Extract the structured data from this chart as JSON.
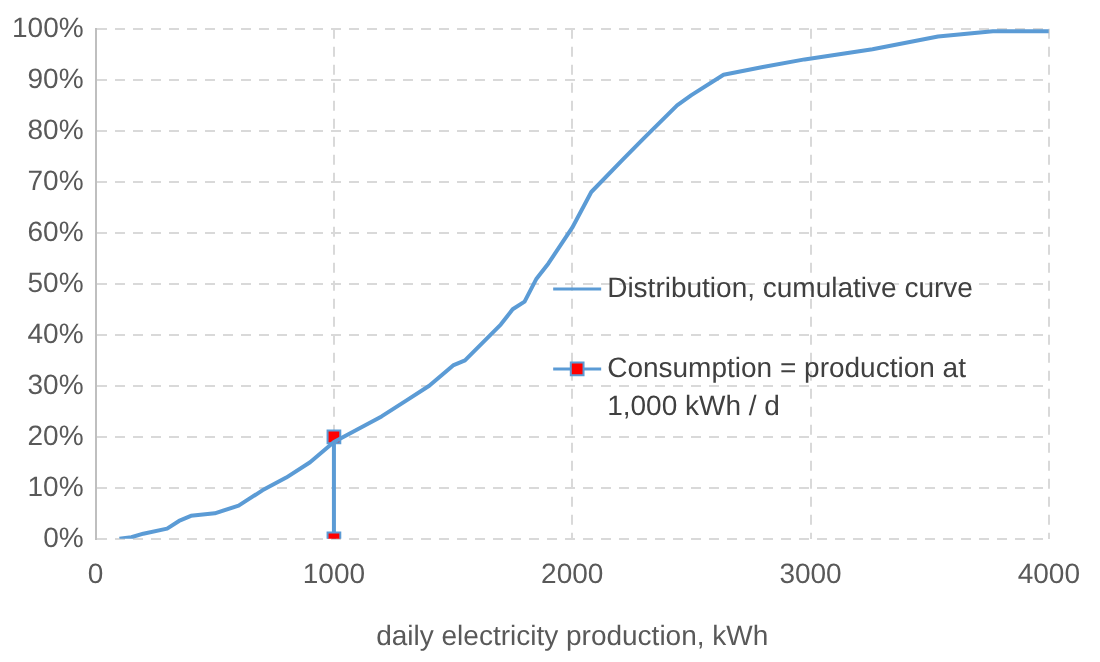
{
  "chart_data": {
    "type": "line",
    "xlabel": "daily electricity production, kWh",
    "xlim": [
      0,
      4000
    ],
    "xticks": [
      0,
      1000,
      2000,
      3000,
      4000
    ],
    "ylim": [
      0,
      100
    ],
    "yticks": [
      {
        "value": 0,
        "label": "0%"
      },
      {
        "value": 10,
        "label": "10%"
      },
      {
        "value": 20,
        "label": "20%"
      },
      {
        "value": 30,
        "label": "30%"
      },
      {
        "value": 40,
        "label": "40%"
      },
      {
        "value": 50,
        "label": "50%"
      },
      {
        "value": 60,
        "label": "60%"
      },
      {
        "value": 70,
        "label": "70%"
      },
      {
        "value": 80,
        "label": "80%"
      },
      {
        "value": 90,
        "label": "90%"
      },
      {
        "value": 100,
        "label": "100%"
      }
    ],
    "grid": true,
    "legend": "right",
    "line_style": "solid",
    "series": [
      {
        "name": "Distribution, cumulative curve",
        "color": "#5b9bd5",
        "marker": "none",
        "x": [
          100,
          150,
          200,
          300,
          350,
          400,
          500,
          600,
          700,
          800,
          900,
          1000,
          1100,
          1200,
          1300,
          1400,
          1500,
          1550,
          1700,
          1750,
          1800,
          1850,
          1900,
          2000,
          2080,
          2215,
          2300,
          2440,
          2500,
          2635,
          2800,
          2975,
          3260,
          3535,
          3765,
          4000
        ],
        "values": [
          0,
          0.3,
          1,
          2,
          3.5,
          4.5,
          5,
          6.5,
          9.5,
          12,
          15,
          19,
          21.5,
          24,
          27,
          30,
          34,
          35,
          42,
          45,
          46.5,
          51,
          54,
          61,
          68,
          74.5,
          78.5,
          85,
          87,
          91,
          92.5,
          94,
          96,
          98.5,
          99.5,
          99.5
        ]
      },
      {
        "name": "Consumption = production at 1,000 kWh / d",
        "color": "#5b9bd5",
        "colors": [
          "#ff0000",
          "#ff0000"
        ],
        "marker": "square",
        "x": [
          1000,
          1000
        ],
        "values": [
          20,
          0
        ]
      }
    ]
  }
}
